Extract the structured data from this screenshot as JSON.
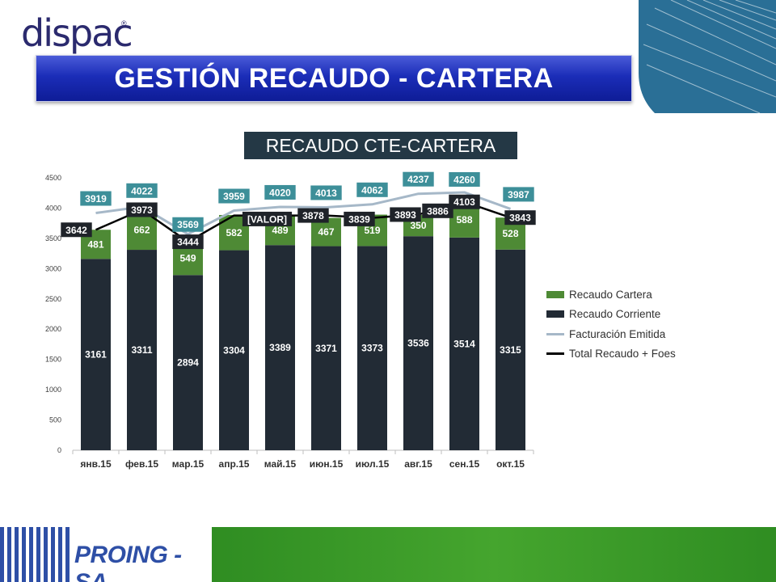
{
  "brand": {
    "logo_text": "dispac",
    "logo_registered": "®",
    "footer_logo_text": "PROING - SA",
    "colors": {
      "banner_blue": "#1b2db8",
      "footer_green": "#3f9a2a",
      "logo_navy": "#2b2a6e"
    }
  },
  "page": {
    "title": "GESTIÓN RECAUDO - CARTERA"
  },
  "chart_data": {
    "type": "bar",
    "title": "RECAUDO CTE-CARTERA",
    "categories": [
      "янв.15",
      "фев.15",
      "мар.15",
      "апр.15",
      "май.15",
      "июн.15",
      "июл.15",
      "авг.15",
      "сен.15",
      "окт.15"
    ],
    "ylim": [
      0,
      4500
    ],
    "yticks": [
      0,
      500,
      1000,
      1500,
      2000,
      2500,
      3000,
      3500,
      4000,
      4500
    ],
    "grid": false,
    "legend_position": "right",
    "series": [
      {
        "name": "Recaudo Corriente",
        "kind": "bar",
        "stack": "recaudo",
        "color": "#222b35",
        "values": [
          3161,
          3311,
          2894,
          3304,
          3389,
          3371,
          3373,
          3536,
          3514,
          3315
        ],
        "labels": [
          "3161",
          "3311",
          "2894",
          "3304",
          "3389",
          "3371",
          "3373",
          "3536",
          "3514",
          "3315"
        ]
      },
      {
        "name": "Recaudo Cartera",
        "kind": "bar",
        "stack": "recaudo",
        "color": "#4e8a35",
        "values": [
          481,
          662,
          549,
          582,
          489,
          467,
          519,
          350,
          588,
          528
        ],
        "labels": [
          "481",
          "662",
          "549",
          "582",
          "489",
          "467",
          "519",
          "350",
          "588",
          "528"
        ]
      },
      {
        "name": "Facturación Emitida",
        "kind": "line",
        "color": "#a6b8c8",
        "values": [
          3919,
          4022,
          3569,
          3959,
          4020,
          4013,
          4062,
          4237,
          4260,
          3987
        ],
        "labels": [
          "3919",
          "4022",
          "3569",
          "3959",
          "4020",
          "4013",
          "4062",
          "4237",
          "4260",
          "3987"
        ]
      },
      {
        "name": "Total Recaudo + Foes",
        "kind": "line",
        "color": "#000000",
        "values": [
          3642,
          3973,
          3444,
          null,
          null,
          3878,
          3839,
          3893,
          4103,
          3843
        ],
        "labels": [
          "3642",
          "3973",
          "3444",
          "",
          "[VALOR]",
          "3878",
          "3839",
          "3893",
          "4103",
          "3843"
        ]
      }
    ],
    "extra_label": "3886",
    "label_colors": {
      "facturacion_box": "#3d8f99",
      "total_box": "#1f2329"
    }
  }
}
